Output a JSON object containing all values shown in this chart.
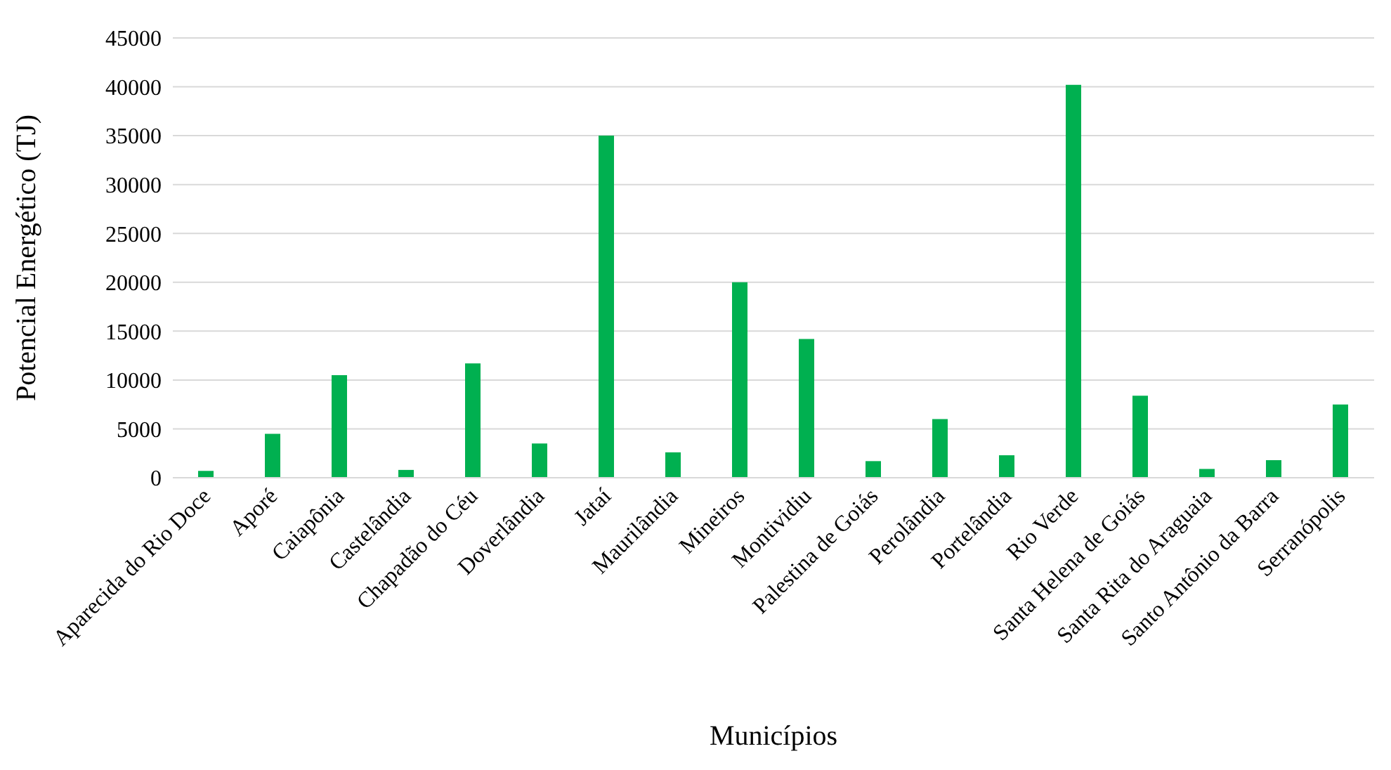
{
  "chart_data": {
    "type": "bar",
    "xlabel": "Municípios",
    "ylabel": "Potencial Energético (TJ)",
    "categories": [
      "Aparecida do Rio Doce",
      "Aporé",
      "Caiapônia",
      "Castelândia",
      "Chapadão do Céu",
      "Doverlândia",
      "Jataí",
      "Maurilândia",
      "Mineiros",
      "Montividiu",
      "Palestina de Goiás",
      "Perolândia",
      "Portelândia",
      "Rio Verde",
      "Santa Helena de Goiás",
      "Santa Rita do Araguaia",
      "Santo Antônio da Barra",
      "Serranópolis"
    ],
    "values": [
      700,
      4500,
      10500,
      800,
      11700,
      3500,
      35000,
      2600,
      20000,
      14200,
      1700,
      6000,
      2300,
      40200,
      8400,
      900,
      1800,
      7500
    ],
    "color": "#00b050",
    "ylim": [
      0,
      45000
    ],
    "yticks": [
      0,
      5000,
      10000,
      15000,
      20000,
      25000,
      30000,
      35000,
      40000,
      45000
    ],
    "grid": "y",
    "legend": false
  }
}
